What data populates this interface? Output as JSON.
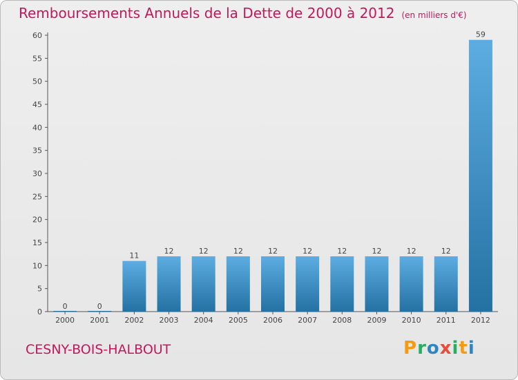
{
  "title": "Remboursements Annuels de la Dette de 2000 à 2012",
  "unit": "(en milliers d'€)",
  "commune": "CESNY-BOIS-HALBOUT",
  "logo": {
    "text": "Proxiti",
    "letters": [
      "P",
      "r",
      "o",
      "x",
      "i",
      "t",
      "i"
    ],
    "colors": [
      "#f39c12",
      "#27ae60",
      "#2e86c1",
      "#e74c3c",
      "#27ae60",
      "#f39c12",
      "#2e86c1"
    ]
  },
  "colors": {
    "bar_top": "#5dade2",
    "bar_bottom": "#2471a3",
    "title": "#c2185b",
    "axis": "#555555"
  },
  "chart_data": {
    "type": "bar",
    "title": "Remboursements Annuels de la Dette de 2000 à 2012",
    "xlabel": "",
    "ylabel": "",
    "categories": [
      "2000",
      "2001",
      "2002",
      "2003",
      "2004",
      "2005",
      "2006",
      "2007",
      "2008",
      "2009",
      "2010",
      "2011",
      "2012"
    ],
    "values": [
      0,
      0,
      11,
      12,
      12,
      12,
      12,
      12,
      12,
      12,
      12,
      12,
      59
    ],
    "ylim": [
      0,
      60
    ],
    "yticks": [
      0,
      5,
      10,
      15,
      20,
      25,
      30,
      35,
      40,
      45,
      50,
      55,
      60
    ],
    "grid": false,
    "legend": "none"
  }
}
